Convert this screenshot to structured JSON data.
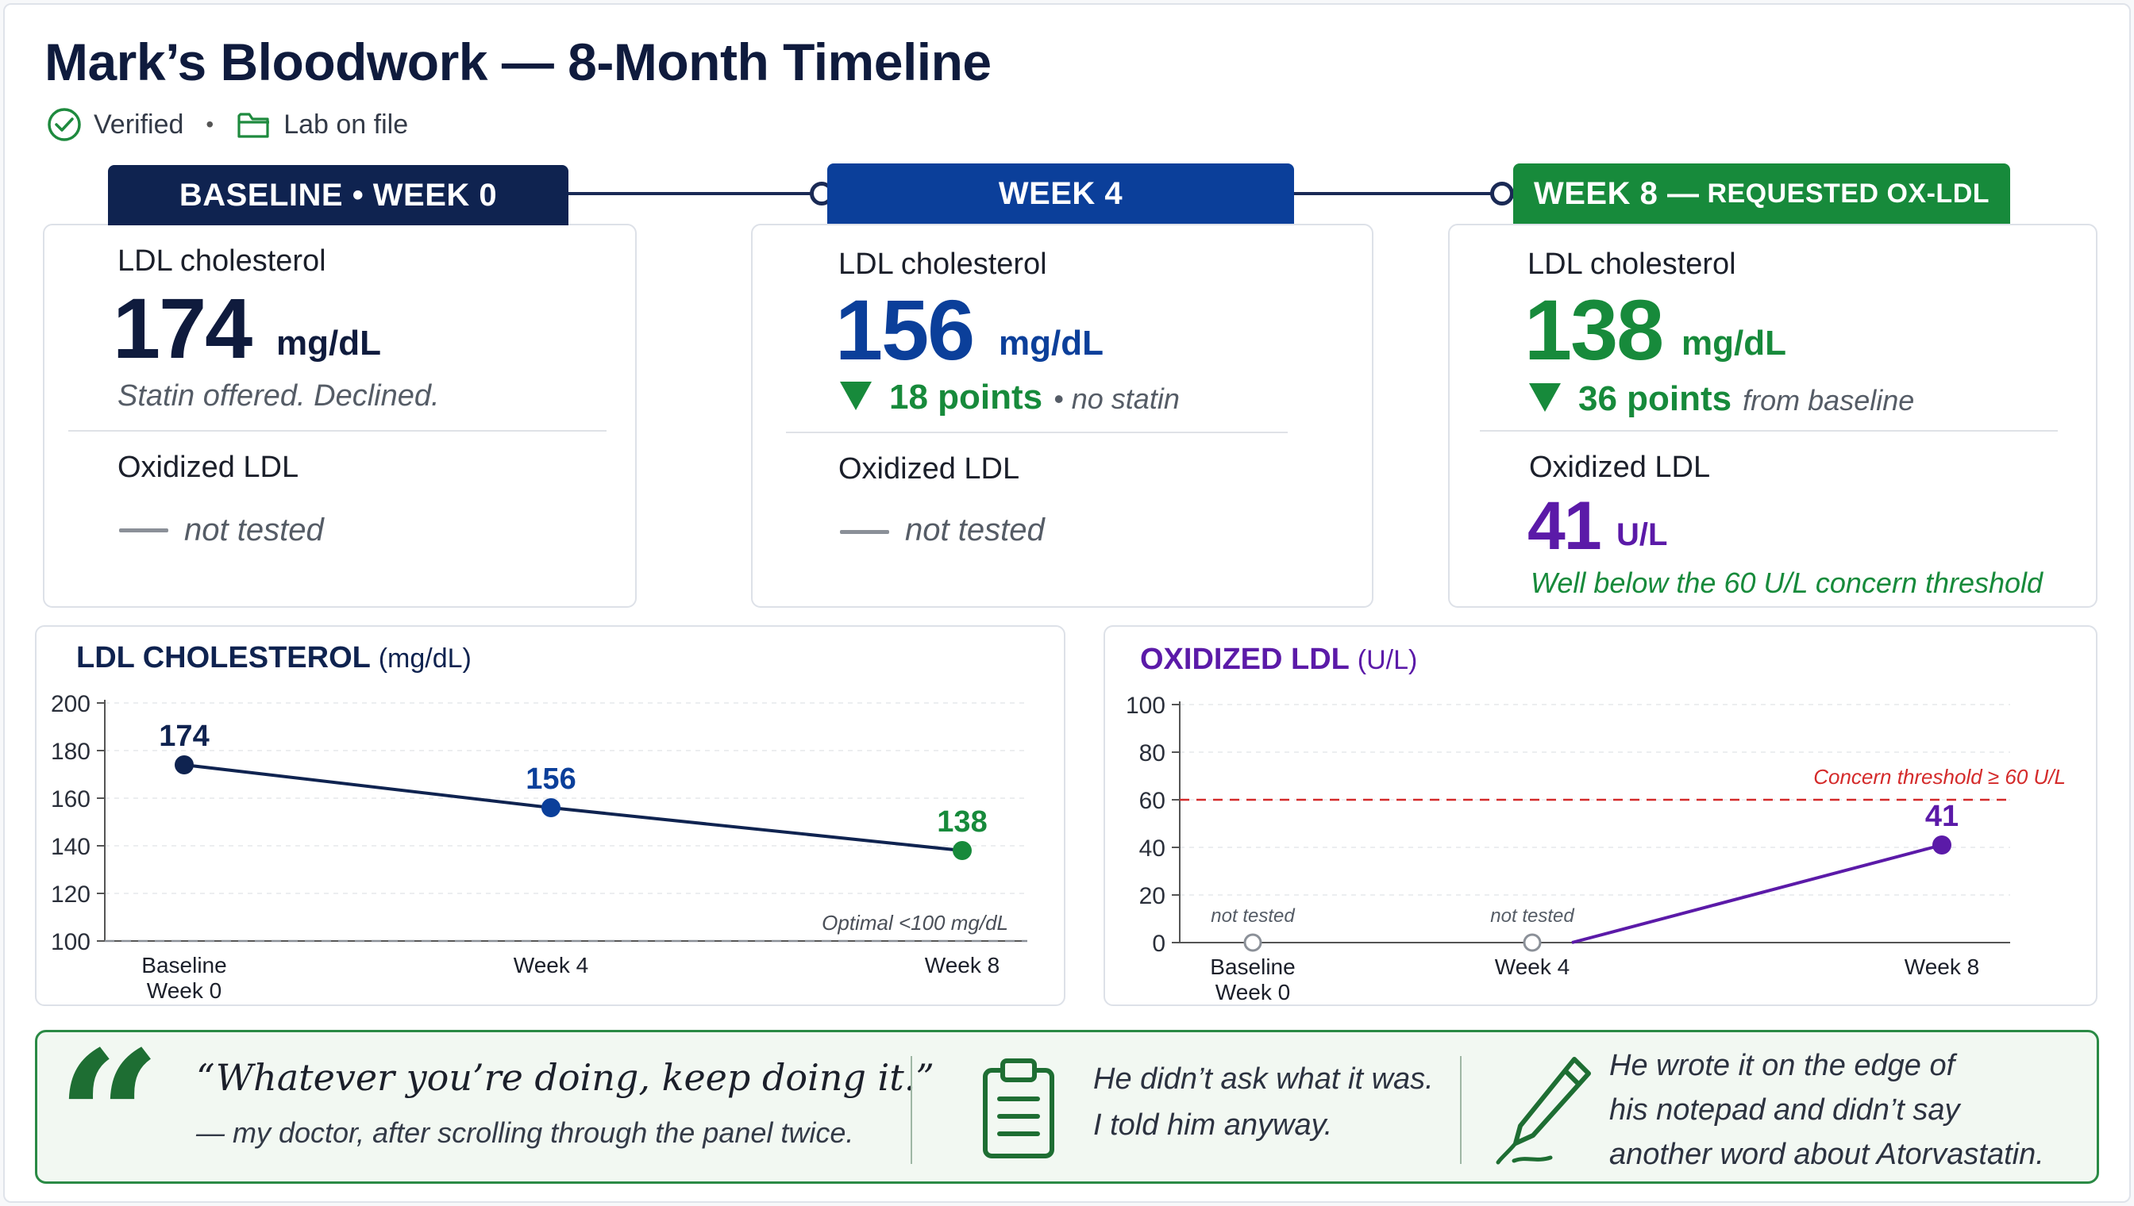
{
  "header": {
    "title": "Mark’s Bloodwork — 8-Month Timeline",
    "verified_label": "Verified",
    "separator": "•",
    "lab_label": "Lab on file"
  },
  "timeline": {
    "tabs": [
      {
        "label": "BASELINE • WEEK 0",
        "suffix": ""
      },
      {
        "label": "WEEK 4",
        "suffix": ""
      },
      {
        "label": "WEEK 8 —",
        "suffix": "REQUESTED OX-LDL"
      }
    ]
  },
  "cards": [
    {
      "ldl_label": "LDL cholesterol",
      "ldl_value": "174",
      "ldl_unit": "mg/dL",
      "ldl_note": "Statin offered. Declined.",
      "ox_label": "Oxidized LDL",
      "ox_note": "not tested"
    },
    {
      "ldl_label": "LDL cholesterol",
      "ldl_value": "156",
      "ldl_unit": "mg/dL",
      "delta": "18 points",
      "delta_note": "• no statin",
      "ox_label": "Oxidized LDL",
      "ox_note": "not tested"
    },
    {
      "ldl_label": "LDL cholesterol",
      "ldl_value": "138",
      "ldl_unit": "mg/dL",
      "delta": "36 points",
      "delta_note": "from baseline",
      "ox_label": "Oxidized LDL",
      "ox_value": "41",
      "ox_unit": "U/L",
      "ox_note": "Well below the 60 U/L concern threshold"
    }
  ],
  "colors": {
    "navy": "#0f2350",
    "blue": "#0b3f9a",
    "green": "#178a3b",
    "purple": "#5b1aa8",
    "red": "#d42a2a"
  },
  "icons": {
    "verified": "check-circle-icon",
    "lab": "folder-icon",
    "quote": "quote-icon",
    "clipboard": "clipboard-icon",
    "pen": "pen-icon"
  },
  "chart_data": [
    {
      "type": "line",
      "title": "LDL CHOLESTEROL",
      "title_unit": "(mg/dL)",
      "categories": [
        "Baseline\nWeek 0",
        "Week 4",
        "Week 8"
      ],
      "category_lines": [
        [
          "Baseline",
          "Week 0"
        ],
        [
          "Week 4"
        ],
        [
          "Week 8"
        ]
      ],
      "values": [
        174,
        156,
        138
      ],
      "point_colors": [
        "#0f2350",
        "#0b3f9a",
        "#178a3b"
      ],
      "ylim": [
        100,
        200
      ],
      "yticks": [
        100,
        120,
        140,
        160,
        180,
        200
      ],
      "reference": {
        "value": 100,
        "label": "Optimal <100 mg/dL"
      }
    },
    {
      "type": "line",
      "title": "OXIDIZED LDL",
      "title_unit": "(U/L)",
      "categories": [
        "Baseline\nWeek 0",
        "Week 4",
        "Week 8"
      ],
      "category_lines": [
        [
          "Baseline",
          "Week 0"
        ],
        [
          "Week 4"
        ],
        [
          "Week 8"
        ]
      ],
      "values": [
        null,
        null,
        41
      ],
      "point_labels": [
        "not tested",
        "not tested",
        "41"
      ],
      "ylim": [
        0,
        100
      ],
      "yticks": [
        0,
        20,
        40,
        60,
        80,
        100
      ],
      "reference": {
        "value": 60,
        "label": "Concern threshold ≥ 60 U/L"
      }
    }
  ],
  "quote": {
    "text": "“Whatever you’re doing, keep doing it.”",
    "attribution": "— my doctor, after scrolling through the panel twice.",
    "middle_line1": "He didn’t ask what it was.",
    "middle_line2": "I told him anyway.",
    "right_line1": "He wrote it on the edge of",
    "right_line2": "his notepad and didn’t say",
    "right_line3": "another word about Atorvastatin."
  }
}
